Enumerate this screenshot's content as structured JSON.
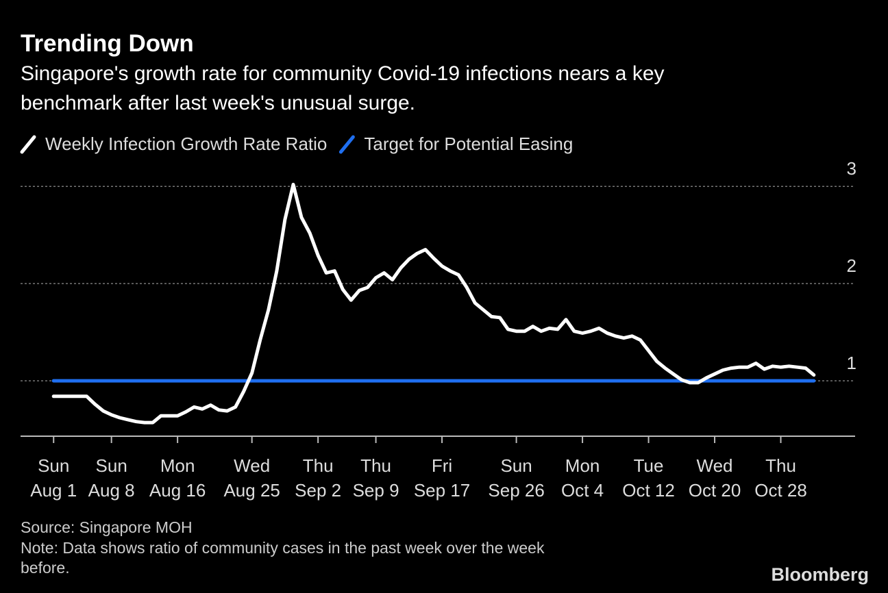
{
  "chart_data": {
    "type": "line",
    "title": "Trending Down",
    "subtitle": [
      "Singapore's growth rate for community Covid-19 infections nears a key",
      "benchmark after last week's unusual surge."
    ],
    "series": [
      {
        "name": "Weekly Infection Growth Rate Ratio",
        "color": "#ffffff",
        "x": [
          "08-01",
          "08-02",
          "08-03",
          "08-04",
          "08-05",
          "08-06",
          "08-07",
          "08-08",
          "08-09",
          "08-10",
          "08-11",
          "08-12",
          "08-13",
          "08-14",
          "08-15",
          "08-16",
          "08-17",
          "08-18",
          "08-19",
          "08-20",
          "08-21",
          "08-22",
          "08-23",
          "08-24",
          "08-25",
          "08-26",
          "08-27",
          "08-28",
          "08-29",
          "08-30",
          "08-31",
          "09-01",
          "09-02",
          "09-03",
          "09-04",
          "09-05",
          "09-06",
          "09-07",
          "09-08",
          "09-09",
          "09-10",
          "09-11",
          "09-12",
          "09-13",
          "09-14",
          "09-15",
          "09-16",
          "09-17",
          "09-18",
          "09-19",
          "09-20",
          "09-21",
          "09-22",
          "09-23",
          "09-24",
          "09-25",
          "09-26",
          "09-27",
          "09-28",
          "09-29",
          "09-30",
          "10-01",
          "10-02",
          "10-03",
          "10-04",
          "10-05",
          "10-06",
          "10-07",
          "10-08",
          "10-09",
          "10-10",
          "10-11",
          "10-12",
          "10-13",
          "10-14",
          "10-15",
          "10-16",
          "10-17",
          "10-18",
          "10-19",
          "10-20",
          "10-21",
          "10-22",
          "10-23",
          "10-24",
          "10-25",
          "10-26",
          "10-27",
          "10-28",
          "10-29",
          "10-30",
          "10-31",
          "11-01"
        ],
        "values": [
          0.84,
          0.84,
          0.84,
          0.84,
          0.84,
          0.76,
          0.69,
          0.65,
          0.62,
          0.6,
          0.58,
          0.57,
          0.57,
          0.64,
          0.64,
          0.64,
          0.68,
          0.73,
          0.71,
          0.75,
          0.7,
          0.69,
          0.73,
          0.89,
          1.08,
          1.42,
          1.73,
          2.13,
          2.66,
          3.02,
          2.68,
          2.52,
          2.29,
          2.11,
          2.13,
          1.94,
          1.83,
          1.93,
          1.96,
          2.06,
          2.11,
          2.04,
          2.16,
          2.25,
          2.31,
          2.35,
          2.26,
          2.18,
          2.13,
          2.09,
          1.96,
          1.8,
          1.73,
          1.66,
          1.65,
          1.53,
          1.51,
          1.51,
          1.56,
          1.51,
          1.54,
          1.53,
          1.63,
          1.51,
          1.49,
          1.51,
          1.54,
          1.49,
          1.46,
          1.44,
          1.46,
          1.42,
          1.31,
          1.2,
          1.13,
          1.07,
          1.01,
          0.98,
          0.98,
          1.03,
          1.07,
          1.11,
          1.13,
          1.14,
          1.14,
          1.18,
          1.12,
          1.15,
          1.14,
          1.15,
          1.14,
          1.13,
          1.06
        ]
      },
      {
        "name": "Target for Potential Easing",
        "color": "#1f6ff0",
        "x": [
          "08-01",
          "11-01"
        ],
        "values": [
          1,
          1
        ]
      }
    ],
    "xlim": [
      "07-28",
      "11-05"
    ],
    "xticks": [
      {
        "value": "08-01",
        "label": [
          "Sun",
          "Aug 1"
        ]
      },
      {
        "value": "08-08",
        "label": [
          "Sun",
          "Aug 8"
        ]
      },
      {
        "value": "08-16",
        "label": [
          "Mon",
          "Aug 16"
        ]
      },
      {
        "value": "08-25",
        "label": [
          "Wed",
          "Aug 25"
        ]
      },
      {
        "value": "09-02",
        "label": [
          "Thu",
          "Sep 2"
        ]
      },
      {
        "value": "09-09",
        "label": [
          "Thu",
          "Sep 9"
        ]
      },
      {
        "value": "09-17",
        "label": [
          "Fri",
          "Sep 17"
        ]
      },
      {
        "value": "09-26",
        "label": [
          "Sun",
          "Sep 26"
        ]
      },
      {
        "value": "10-04",
        "label": [
          "Mon",
          "Oct 4"
        ]
      },
      {
        "value": "10-12",
        "label": [
          "Tue",
          "Oct 12"
        ]
      },
      {
        "value": "10-20",
        "label": [
          "Wed",
          "Oct 20"
        ]
      },
      {
        "value": "10-28",
        "label": [
          "Thu",
          "Oct 28"
        ]
      }
    ],
    "ylim": [
      0.43,
      3.1
    ],
    "yticks": [
      1,
      2,
      3
    ],
    "grid": true,
    "legend": "top-left",
    "source": "Source: Singapore MOH",
    "note": [
      "Note: Data shows ratio of community cases in the past week over the week",
      "before."
    ],
    "brand": "Bloomberg"
  }
}
